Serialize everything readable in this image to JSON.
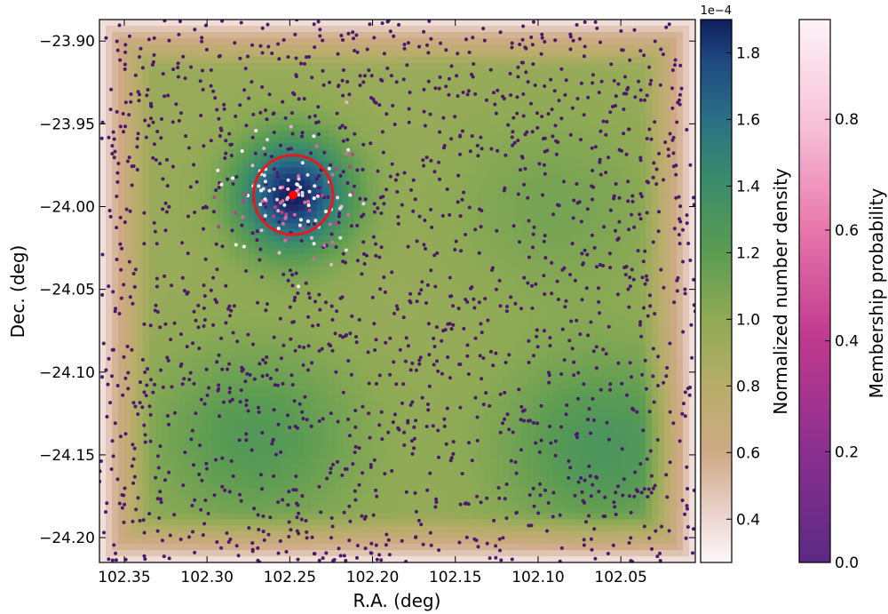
{
  "chart_data": {
    "type": "scatter",
    "xlabel": "R.A. (deg)",
    "ylabel": "Dec. (deg)",
    "xlim": [
      102.365,
      102.005
    ],
    "ylim": [
      -24.215,
      -23.887
    ],
    "x_ticks": [
      "102.35",
      "102.30",
      "102.25",
      "102.20",
      "102.15",
      "102.10",
      "102.05"
    ],
    "x_tick_values": [
      102.35,
      102.3,
      102.25,
      102.2,
      102.15,
      102.1,
      102.05
    ],
    "y_ticks": [
      "−23.90",
      "−23.95",
      "−24.00",
      "−24.05",
      "−24.10",
      "−24.15",
      "−24.20"
    ],
    "y_tick_values": [
      -23.9,
      -23.95,
      -24.0,
      -24.05,
      -24.1,
      -24.15,
      -24.2
    ],
    "density_map": {
      "description_units": "normalized number density",
      "peak": {
        "x": 102.248,
        "y": -23.993,
        "value": 1.9
      },
      "secondary_peaks": [
        {
          "x": 102.27,
          "y": -24.14,
          "value": 1.25
        },
        {
          "x": 102.06,
          "y": -24.145,
          "value": 1.3
        },
        {
          "x": 102.09,
          "y": -24.0,
          "value": 1.1
        }
      ],
      "edge_value": 0.3
    },
    "cluster_center": {
      "x": 102.248,
      "y": -23.993
    },
    "cluster_radius_deg": 0.024,
    "members_region": {
      "x_center": 102.248,
      "y_center": -23.995,
      "spread_deg": 0.03
    },
    "n_field_stars": 1700,
    "n_member_stars": 120,
    "colorbar_density": {
      "label": "Normalized number density",
      "offset": "1e−4",
      "range": [
        0.27,
        1.9
      ],
      "ticks": [
        "0.4",
        "0.6",
        "0.8",
        "1.0",
        "1.2",
        "1.4",
        "1.6",
        "1.8"
      ],
      "tick_values": [
        0.4,
        0.6,
        0.8,
        1.0,
        1.2,
        1.4,
        1.6,
        1.8
      ]
    },
    "colorbar_membership": {
      "label": "Membership probability",
      "range": [
        0.0,
        0.98
      ],
      "ticks": [
        "0.0",
        "0.2",
        "0.4",
        "0.6",
        "0.8"
      ],
      "tick_values": [
        0.0,
        0.2,
        0.4,
        0.6,
        0.8
      ]
    },
    "colors": {
      "circle": "#e41a1c",
      "center_marker": "#ff0000",
      "field_star": "#4a1a6b"
    }
  }
}
